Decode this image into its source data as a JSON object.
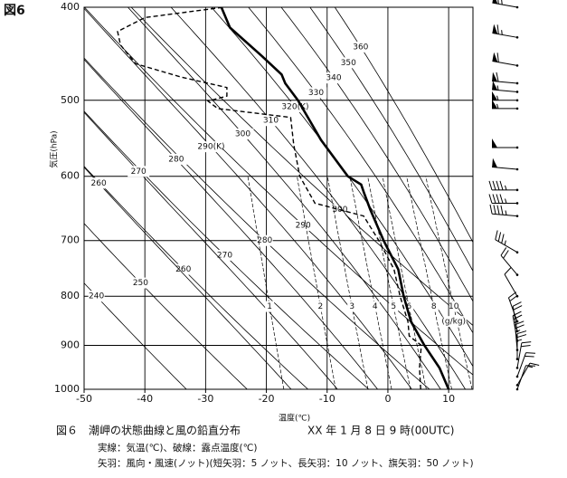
{
  "chart_data": {
    "type": "line",
    "figure_label": "図6",
    "title": "図６　潮岬の状態曲線と風の鉛直分布",
    "subtitle": "XX 年 1 月 8 日 9 時(00UTC)",
    "notes": [
      "実線：気温(℃)、破線：露点温度(℃)",
      "矢羽：風向・風速(ノット)(短矢羽：5 ノット、長矢羽：10 ノット、旗矢羽：50 ノット)"
    ],
    "x_label": "温度(℃)",
    "y_label": "気圧(hPa)",
    "xlim": [
      -50,
      14
    ],
    "ylim": [
      1000,
      400
    ],
    "y_log": true,
    "xticks": [
      -50,
      -40,
      -30,
      -20,
      -10,
      0,
      10
    ],
    "yticks": [
      1000,
      900,
      800,
      700,
      600,
      500,
      400
    ],
    "series": [
      {
        "line_style": "solid",
        "color": "#000000",
        "pressure": [
          1000,
          950,
          900,
          850,
          800,
          750,
          700,
          650,
          625,
          612,
          600,
          550,
          500,
          480,
          470,
          450,
          420,
          400
        ],
        "values": [
          10,
          8.5,
          6,
          3.8,
          2.6,
          1.7,
          -0.7,
          -2.9,
          -3.9,
          -4.4,
          -6.6,
          -11,
          -14.8,
          -16.9,
          -17.5,
          -20.7,
          -26,
          -27.4
        ]
      },
      {
        "line_style": "dashed",
        "color": "#000000",
        "pressure": [
          1000,
          950,
          900,
          880,
          850,
          800,
          750,
          700,
          660,
          640,
          600,
          556,
          521,
          510,
          501,
          495,
          485,
          473,
          458,
          438,
          424,
          410,
          400
        ],
        "values": [
          5.4,
          5.2,
          5.5,
          3.5,
          3.3,
          2,
          1,
          -1.5,
          -4,
          -12,
          -14.5,
          -15.5,
          -16,
          -28,
          -29.6,
          -26.5,
          -26.5,
          -34,
          -41.5,
          -44,
          -44.5,
          -40,
          -27
        ]
      }
    ],
    "dry_adiabats": [
      240,
      250,
      260,
      270,
      280,
      290,
      300
    ],
    "moist_adiabats": [
      260,
      270,
      280,
      {
        "value": 290,
        "label": "290(K)"
      },
      300,
      310,
      {
        "value": 320,
        "label": "320(K)"
      },
      330,
      340,
      350,
      360
    ],
    "mixing_ratios": [
      1,
      2,
      3,
      4,
      5,
      6,
      8,
      10
    ],
    "mixing_ratio_unit": "(g/kg)",
    "wind_pressure": [
      400,
      430,
      460,
      480,
      490,
      500,
      510,
      560,
      590,
      620,
      640,
      660,
      720,
      760,
      800,
      850,
      870,
      890,
      910,
      930,
      950,
      970,
      990,
      1000
    ],
    "wind_direction": [
      280,
      280,
      280,
      275,
      275,
      270,
      270,
      270,
      275,
      270,
      270,
      275,
      300,
      320,
      330,
      340,
      350,
      350,
      355,
      0,
      10,
      20,
      30,
      20
    ],
    "wind_speed": [
      70,
      65,
      60,
      60,
      55,
      55,
      55,
      50,
      50,
      45,
      45,
      45,
      35,
      20,
      10,
      20,
      20,
      25,
      25,
      25,
      20,
      20,
      15,
      10
    ]
  }
}
